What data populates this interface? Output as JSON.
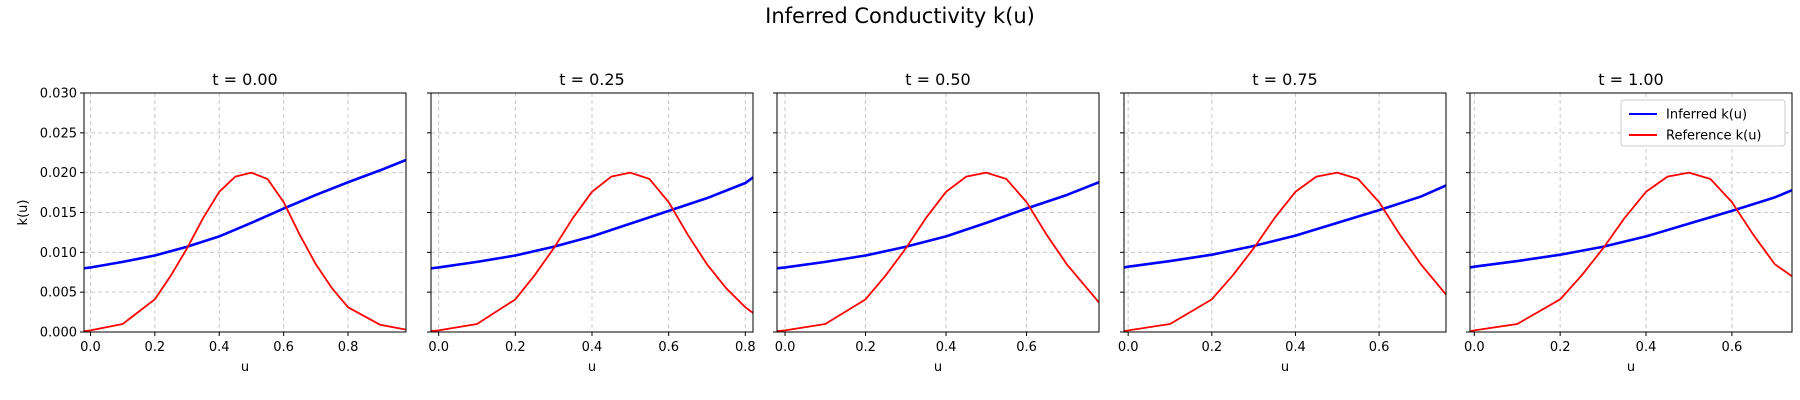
{
  "figure": {
    "title": "Inferred Conductivity k(u)"
  },
  "colors": {
    "inferred": "#0000ff",
    "reference": "#ff0000",
    "grid": "#c8c8c8"
  },
  "chart_data": [
    {
      "type": "line",
      "title": "t = 0.00",
      "xlabel": "u",
      "ylabel": "k(u)",
      "xlim": [
        -0.02,
        0.98
      ],
      "ylim": [
        0,
        0.03
      ],
      "xticks": [
        "0.0",
        "0.2",
        "0.4",
        "0.6",
        "0.8"
      ],
      "yticks": [
        "0.000",
        "0.005",
        "0.010",
        "0.015",
        "0.020",
        "0.025",
        "0.030"
      ],
      "grid": true,
      "legend": false,
      "series": [
        {
          "name": "Inferred k(u)",
          "color": "#0000ff",
          "x": [
            -0.02,
            0.0,
            0.1,
            0.2,
            0.3,
            0.4,
            0.5,
            0.6,
            0.7,
            0.8,
            0.9,
            0.98
          ],
          "y": [
            0.008,
            0.0081,
            0.0088,
            0.0096,
            0.0107,
            0.012,
            0.0137,
            0.0155,
            0.0172,
            0.0188,
            0.0203,
            0.0216
          ]
        },
        {
          "name": "Reference k(u)",
          "color": "#ff0000",
          "x": [
            -0.02,
            0.0,
            0.1,
            0.2,
            0.25,
            0.3,
            0.35,
            0.4,
            0.45,
            0.5,
            0.55,
            0.6,
            0.65,
            0.7,
            0.75,
            0.8,
            0.9,
            0.98
          ],
          "y": [
            0.0001,
            0.0002,
            0.001,
            0.0041,
            0.0071,
            0.0105,
            0.0143,
            0.0176,
            0.0195,
            0.02,
            0.0192,
            0.0163,
            0.0122,
            0.0085,
            0.0055,
            0.0031,
            0.0009,
            0.0003
          ]
        }
      ]
    },
    {
      "type": "line",
      "title": "t = 0.25",
      "xlabel": "u",
      "ylabel": "",
      "xlim": [
        -0.02,
        0.82
      ],
      "ylim": [
        0,
        0.03
      ],
      "xticks": [
        "0.0",
        "0.2",
        "0.4",
        "0.6",
        "0.8"
      ],
      "yticks": [],
      "grid": true,
      "legend": false,
      "series": [
        {
          "name": "Inferred k(u)",
          "color": "#0000ff",
          "x": [
            -0.02,
            0.0,
            0.1,
            0.2,
            0.3,
            0.4,
            0.5,
            0.6,
            0.7,
            0.8,
            0.82
          ],
          "y": [
            0.008,
            0.0081,
            0.0088,
            0.0096,
            0.0107,
            0.012,
            0.0136,
            0.0152,
            0.0168,
            0.0187,
            0.0194
          ]
        },
        {
          "name": "Reference k(u)",
          "color": "#ff0000",
          "x": [
            -0.02,
            0.0,
            0.1,
            0.2,
            0.25,
            0.3,
            0.35,
            0.4,
            0.45,
            0.5,
            0.55,
            0.6,
            0.65,
            0.7,
            0.75,
            0.8,
            0.82
          ],
          "y": [
            0.0001,
            0.0002,
            0.001,
            0.0041,
            0.0071,
            0.0105,
            0.0143,
            0.0176,
            0.0195,
            0.02,
            0.0192,
            0.0163,
            0.0122,
            0.0085,
            0.0055,
            0.0031,
            0.0024
          ]
        }
      ]
    },
    {
      "type": "line",
      "title": "t = 0.50",
      "xlabel": "u",
      "ylabel": "",
      "xlim": [
        -0.02,
        0.78
      ],
      "ylim": [
        0,
        0.03
      ],
      "xticks": [
        "0.0",
        "0.2",
        "0.4",
        "0.6"
      ],
      "yticks": [],
      "grid": true,
      "legend": false,
      "series": [
        {
          "name": "Inferred k(u)",
          "color": "#0000ff",
          "x": [
            -0.02,
            0.0,
            0.1,
            0.2,
            0.3,
            0.4,
            0.5,
            0.6,
            0.7,
            0.78
          ],
          "y": [
            0.008,
            0.0081,
            0.0088,
            0.0096,
            0.0107,
            0.012,
            0.0137,
            0.0155,
            0.0172,
            0.0188
          ]
        },
        {
          "name": "Reference k(u)",
          "color": "#ff0000",
          "x": [
            -0.02,
            0.0,
            0.1,
            0.2,
            0.25,
            0.3,
            0.35,
            0.4,
            0.45,
            0.5,
            0.55,
            0.6,
            0.65,
            0.7,
            0.75,
            0.78
          ],
          "y": [
            0.0001,
            0.0002,
            0.001,
            0.0041,
            0.0071,
            0.0105,
            0.0143,
            0.0176,
            0.0195,
            0.02,
            0.0192,
            0.0163,
            0.0122,
            0.0085,
            0.0055,
            0.0037
          ]
        }
      ]
    },
    {
      "type": "line",
      "title": "t = 0.75",
      "xlabel": "u",
      "ylabel": "",
      "xlim": [
        -0.01,
        0.76
      ],
      "ylim": [
        0,
        0.03
      ],
      "xticks": [
        "0.0",
        "0.2",
        "0.4",
        "0.6"
      ],
      "yticks": [],
      "grid": true,
      "legend": false,
      "series": [
        {
          "name": "Inferred k(u)",
          "color": "#0000ff",
          "x": [
            -0.01,
            0.0,
            0.1,
            0.2,
            0.3,
            0.4,
            0.5,
            0.6,
            0.7,
            0.76
          ],
          "y": [
            0.0081,
            0.0082,
            0.0089,
            0.0097,
            0.0108,
            0.0121,
            0.0137,
            0.0153,
            0.017,
            0.0184
          ]
        },
        {
          "name": "Reference k(u)",
          "color": "#ff0000",
          "x": [
            -0.01,
            0.0,
            0.1,
            0.2,
            0.25,
            0.3,
            0.35,
            0.4,
            0.45,
            0.5,
            0.55,
            0.6,
            0.65,
            0.7,
            0.76
          ],
          "y": [
            0.0001,
            0.0002,
            0.001,
            0.0041,
            0.0071,
            0.0105,
            0.0143,
            0.0176,
            0.0195,
            0.02,
            0.0192,
            0.0163,
            0.0122,
            0.0085,
            0.0047
          ]
        }
      ]
    },
    {
      "type": "line",
      "title": "t = 1.00",
      "xlabel": "u",
      "ylabel": "",
      "xlim": [
        -0.01,
        0.74
      ],
      "ylim": [
        0,
        0.03
      ],
      "xticks": [
        "0.0",
        "0.2",
        "0.4",
        "0.6"
      ],
      "yticks": [],
      "grid": true,
      "legend": true,
      "legend_loc": "upper right",
      "series": [
        {
          "name": "Inferred k(u)",
          "color": "#0000ff",
          "x": [
            -0.01,
            0.0,
            0.1,
            0.2,
            0.3,
            0.4,
            0.5,
            0.6,
            0.7,
            0.74
          ],
          "y": [
            0.0081,
            0.0082,
            0.0089,
            0.0097,
            0.0107,
            0.012,
            0.0136,
            0.0152,
            0.0169,
            0.0178
          ]
        },
        {
          "name": "Reference k(u)",
          "color": "#ff0000",
          "x": [
            -0.01,
            0.0,
            0.1,
            0.2,
            0.25,
            0.3,
            0.35,
            0.4,
            0.45,
            0.5,
            0.55,
            0.6,
            0.65,
            0.7,
            0.74
          ],
          "y": [
            0.0001,
            0.0002,
            0.001,
            0.0041,
            0.0071,
            0.0105,
            0.0143,
            0.0176,
            0.0195,
            0.02,
            0.0192,
            0.0163,
            0.0122,
            0.0085,
            0.007
          ]
        }
      ]
    }
  ]
}
